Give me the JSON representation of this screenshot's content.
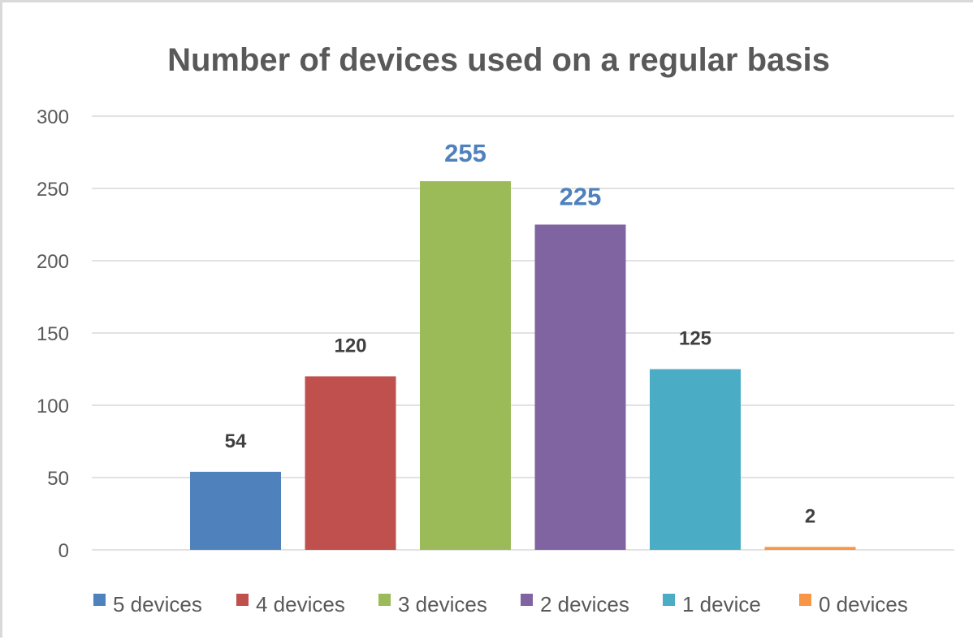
{
  "chart_data": {
    "type": "bar",
    "title": "Number of devices used on a regular basis",
    "xlabel": "",
    "ylabel": "",
    "ylim": [
      0,
      300
    ],
    "yticks": [
      0,
      50,
      100,
      150,
      200,
      250,
      300
    ],
    "grid": true,
    "legend_position": "bottom",
    "categories": [
      "5 devices",
      "4 devices",
      "3 devices",
      "2 devices",
      "1 device",
      "0 devices"
    ],
    "values": [
      54,
      120,
      255,
      225,
      125,
      2
    ],
    "data_labels": [
      "54",
      "120",
      "255",
      "225",
      "125",
      "2"
    ],
    "colors": [
      "#4f81bd",
      "#c0504d",
      "#9bbb59",
      "#8064a2",
      "#4bacc6",
      "#f79646"
    ],
    "label_colors": [
      "#404040",
      "#404040",
      "#4f81bd",
      "#4f81bd",
      "#404040",
      "#404040"
    ],
    "highlighted_labels": [
      false,
      false,
      true,
      true,
      false,
      false
    ]
  }
}
